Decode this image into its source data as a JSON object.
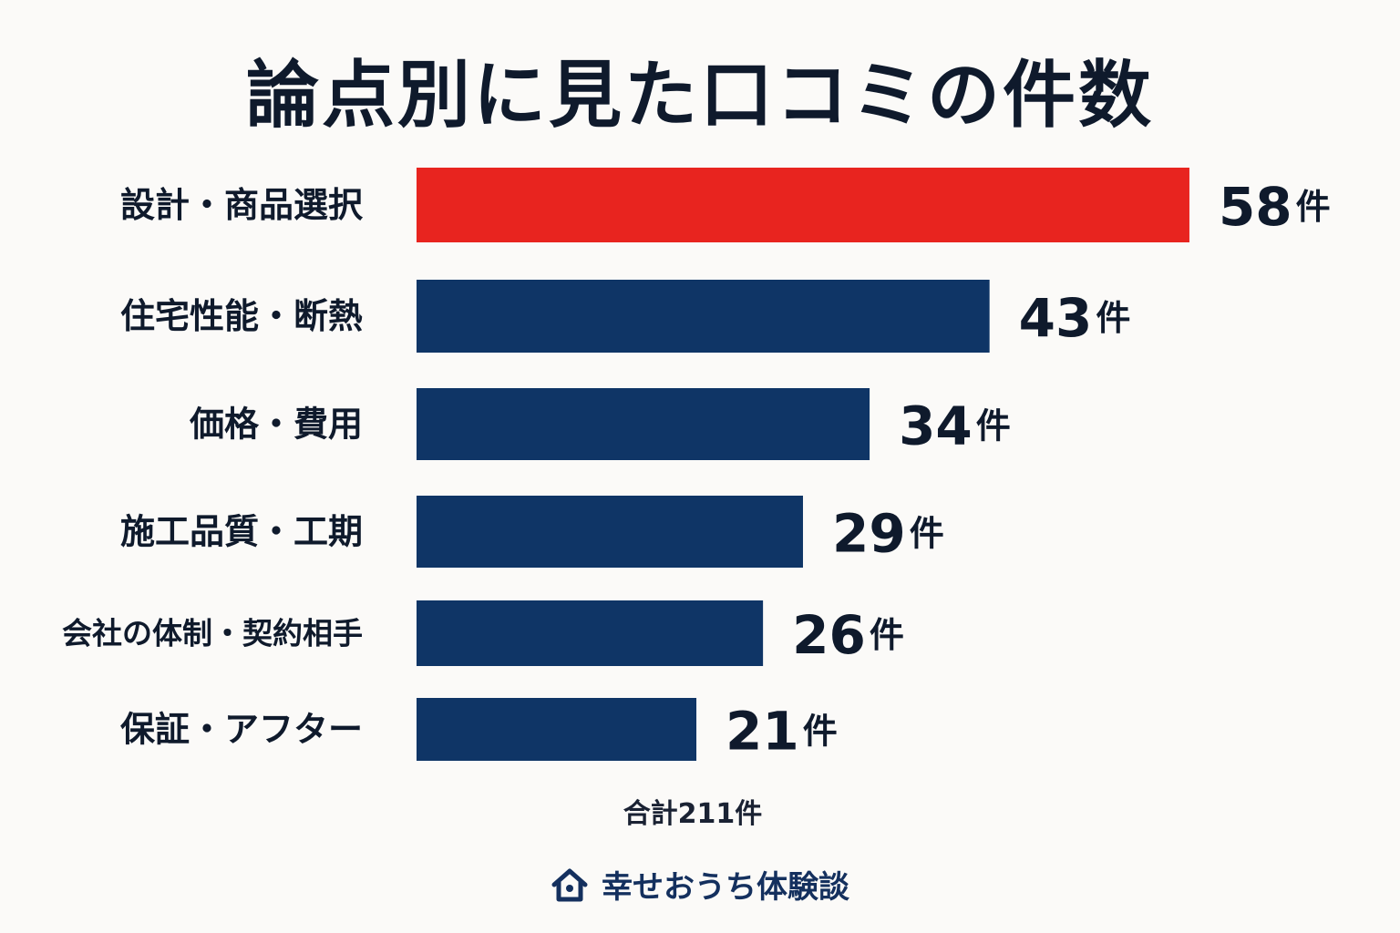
{
  "chart_data": {
    "type": "bar",
    "orientation": "horizontal",
    "title": "論点別に見た口コミの件数",
    "categories": [
      "設計・商品選択",
      "住宅性能・断熱",
      "価格・費用",
      "施工品質・工期",
      "会社の体制・契約相手",
      "保証・アフター"
    ],
    "values": [
      58,
      43,
      34,
      29,
      26,
      21
    ],
    "value_labels": [
      "58件",
      "43件",
      "34件",
      "29件",
      "26件",
      "21件"
    ],
    "colors": [
      "#e8241f",
      "#0f3566",
      "#0f3566",
      "#0f3566",
      "#0f3566",
      "#0f3566"
    ],
    "grid": false,
    "legend": "none",
    "note": "合計211件"
  },
  "footer": {
    "brand": "幸せおうち体験談",
    "icon": "house-icon"
  }
}
